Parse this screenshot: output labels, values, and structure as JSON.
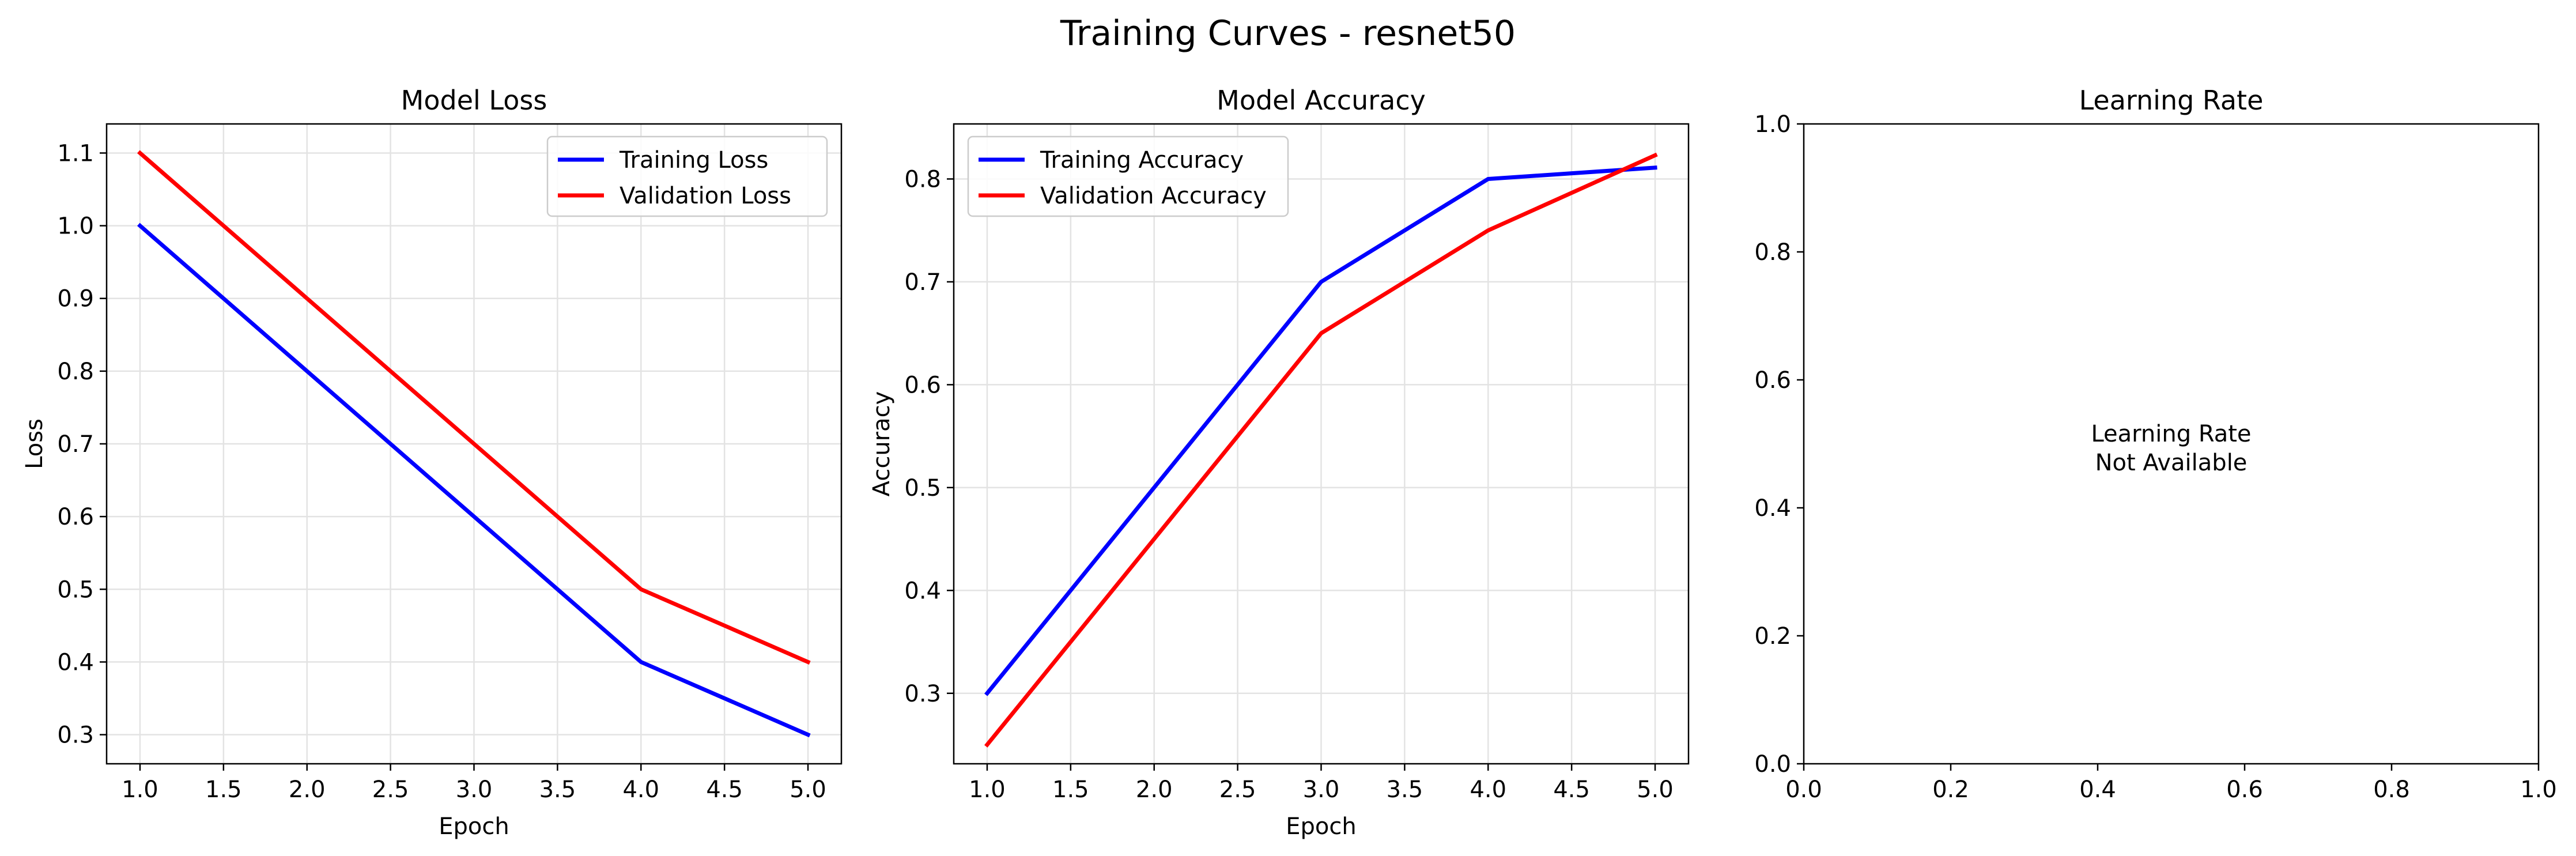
{
  "suptitle": "Training Curves - resnet50",
  "colors": {
    "training": "#0000ff",
    "validation": "#ff0000",
    "grid": "#e3e3e3",
    "axis": "#000000"
  },
  "chart_data": [
    {
      "type": "line",
      "title": "Model Loss",
      "xlabel": "Epoch",
      "ylabel": "Loss",
      "xlim": [
        0.8,
        5.2
      ],
      "ylim": [
        0.26,
        1.14
      ],
      "xticks": [
        "1.0",
        "1.5",
        "2.0",
        "2.5",
        "3.0",
        "3.5",
        "4.0",
        "4.5",
        "5.0"
      ],
      "yticks": [
        "0.3",
        "0.4",
        "0.5",
        "0.6",
        "0.7",
        "0.8",
        "0.9",
        "1.0",
        "1.1"
      ],
      "grid": true,
      "legend_position": "top-right",
      "x": [
        1,
        2,
        3,
        4,
        5
      ],
      "series": [
        {
          "name": "Training Loss",
          "values": [
            1.0,
            0.8,
            0.6,
            0.4,
            0.3
          ]
        },
        {
          "name": "Validation Loss",
          "values": [
            1.1,
            0.9,
            0.7,
            0.5,
            0.4
          ]
        }
      ]
    },
    {
      "type": "line",
      "title": "Model Accuracy",
      "xlabel": "Epoch",
      "ylabel": "Accuracy",
      "xlim": [
        0.8,
        5.2
      ],
      "ylim": [
        0.2315,
        0.8535
      ],
      "xticks": [
        "1.0",
        "1.5",
        "2.0",
        "2.5",
        "3.0",
        "3.5",
        "4.0",
        "4.5",
        "5.0"
      ],
      "yticks": [
        "0.3",
        "0.4",
        "0.5",
        "0.6",
        "0.7",
        "0.8"
      ],
      "grid": true,
      "legend_position": "top-left",
      "x": [
        1,
        2,
        3,
        4,
        5
      ],
      "series": [
        {
          "name": "Training Accuracy",
          "values": [
            0.3,
            0.5,
            0.7,
            0.8,
            0.811
          ]
        },
        {
          "name": "Validation Accuracy",
          "values": [
            0.25,
            0.45,
            0.65,
            0.75,
            0.823
          ]
        }
      ]
    },
    {
      "type": "line",
      "title": "Learning Rate",
      "xlim": [
        0,
        1
      ],
      "ylim": [
        0,
        1
      ],
      "xticks": [
        "0.0",
        "0.2",
        "0.4",
        "0.6",
        "0.8",
        "1.0"
      ],
      "yticks": [
        "0.0",
        "0.2",
        "0.4",
        "0.6",
        "0.8",
        "1.0"
      ],
      "grid": false,
      "annotation": [
        "Learning Rate",
        "Not Available"
      ],
      "series": []
    }
  ]
}
